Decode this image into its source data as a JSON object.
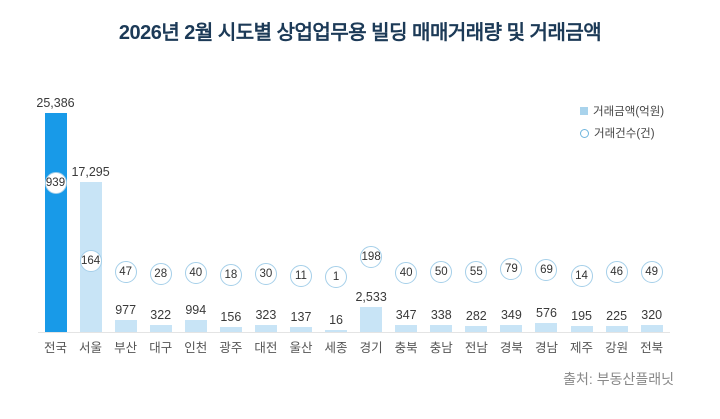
{
  "title": "2026년 2월 시도별 상업업무용 빌딩 매매거래량 및 거래금액",
  "source": "출처: 부동산플래닛",
  "legend": {
    "amount_label": "거래금액(억원)",
    "count_label": "거래건수(건)"
  },
  "colors": {
    "highlight_bar": "#189ae8",
    "bar": "#c8e4f6",
    "circle_border": "#a5cfe9",
    "title_text": "#1c3a57",
    "value_text": "#3a3a3a",
    "axis_text": "#555555",
    "source_text": "#898989",
    "axis_line": "#e4e4e4"
  },
  "chart_data": {
    "type": "bar",
    "title": "2026년 2월 시도별 상업업무용 빌딩 매매거래량 및 거래금액",
    "categories": [
      "전국",
      "서울",
      "부산",
      "대구",
      "인천",
      "광주",
      "대전",
      "울산",
      "세종",
      "경기",
      "충북",
      "충남",
      "전남",
      "경북",
      "경남",
      "제주",
      "강원",
      "전북"
    ],
    "series": [
      {
        "name": "거래금액(억원)",
        "marker": "bar",
        "values": [
          25386,
          17295,
          977,
          322,
          994,
          156,
          323,
          137,
          16,
          2533,
          347,
          338,
          282,
          349,
          576,
          195,
          225,
          320
        ]
      },
      {
        "name": "거래건수(건)",
        "marker": "circle",
        "values": [
          939,
          164,
          47,
          28,
          40,
          18,
          30,
          11,
          1,
          198,
          40,
          50,
          55,
          79,
          69,
          14,
          46,
          49
        ]
      }
    ],
    "highlight_category": "전국",
    "legend_position": "top-right",
    "grid": false,
    "xlabel": "",
    "ylabel": ""
  }
}
